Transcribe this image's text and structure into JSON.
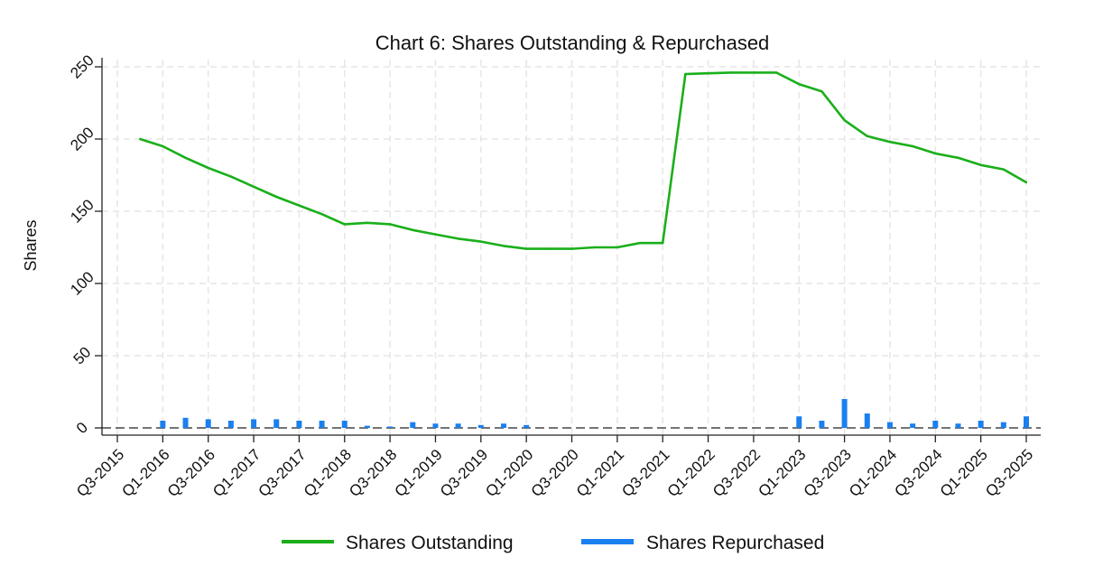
{
  "chart_data": {
    "type": "line",
    "title": "Chart 6: Shares Outstanding & Repurchased",
    "xlabel": "",
    "ylabel": "Shares",
    "ylim": [
      -5,
      255
    ],
    "yticks": [
      0,
      50,
      100,
      150,
      200,
      250
    ],
    "grid": true,
    "legend_position": "bottom",
    "categories": [
      "Q3-2015",
      "Q4-2015",
      "Q1-2016",
      "Q2-2016",
      "Q3-2016",
      "Q4-2016",
      "Q1-2017",
      "Q2-2017",
      "Q3-2017",
      "Q4-2017",
      "Q1-2018",
      "Q2-2018",
      "Q3-2018",
      "Q4-2018",
      "Q1-2019",
      "Q2-2019",
      "Q3-2019",
      "Q4-2019",
      "Q1-2020",
      "Q2-2020",
      "Q3-2020",
      "Q4-2020",
      "Q1-2021",
      "Q2-2021",
      "Q3-2021",
      "Q4-2021",
      "Q1-2022",
      "Q2-2022",
      "Q3-2022",
      "Q4-2022",
      "Q1-2023",
      "Q2-2023",
      "Q3-2023",
      "Q4-2023",
      "Q1-2024",
      "Q2-2024",
      "Q3-2024",
      "Q4-2024",
      "Q1-2025",
      "Q2-2025",
      "Q3-2025"
    ],
    "tick_labels": [
      "Q3-2015",
      "Q1-2016",
      "Q3-2016",
      "Q1-2017",
      "Q3-2017",
      "Q1-2018",
      "Q3-2018",
      "Q1-2019",
      "Q3-2019",
      "Q1-2020",
      "Q3-2020",
      "Q1-2021",
      "Q3-2021",
      "Q1-2022",
      "Q3-2022",
      "Q1-2023",
      "Q3-2023",
      "Q1-2024",
      "Q3-2024",
      "Q1-2025",
      "Q3-2025"
    ],
    "series": [
      {
        "name": "Shares Outstanding",
        "kind": "line",
        "color": "#1aaf1a",
        "values": [
          null,
          200,
          195,
          187,
          180,
          174,
          167,
          160,
          154,
          148,
          141,
          142,
          141,
          137,
          134,
          131,
          129,
          126,
          124,
          124,
          124,
          125,
          125,
          128,
          128,
          245,
          245.5,
          246,
          246,
          246,
          238,
          233,
          213,
          202,
          198,
          195,
          190,
          187,
          182,
          179,
          170
        ]
      },
      {
        "name": "Shares Repurchased",
        "kind": "bar",
        "color": "#1a80f0",
        "values": [
          0,
          0,
          5,
          7,
          6,
          5,
          6,
          6,
          5,
          5,
          5,
          1.5,
          1,
          4,
          3,
          3,
          2,
          3,
          2,
          0,
          0,
          0,
          0,
          0,
          0,
          0,
          0,
          0,
          0,
          0,
          8,
          5,
          20,
          10,
          4,
          3,
          5,
          3,
          5,
          4,
          8
        ]
      }
    ]
  },
  "legend": {
    "items": [
      {
        "label": "Shares Outstanding",
        "color": "#1aaf1a"
      },
      {
        "label": "Shares Repurchased",
        "color": "#1a80f0"
      }
    ]
  }
}
